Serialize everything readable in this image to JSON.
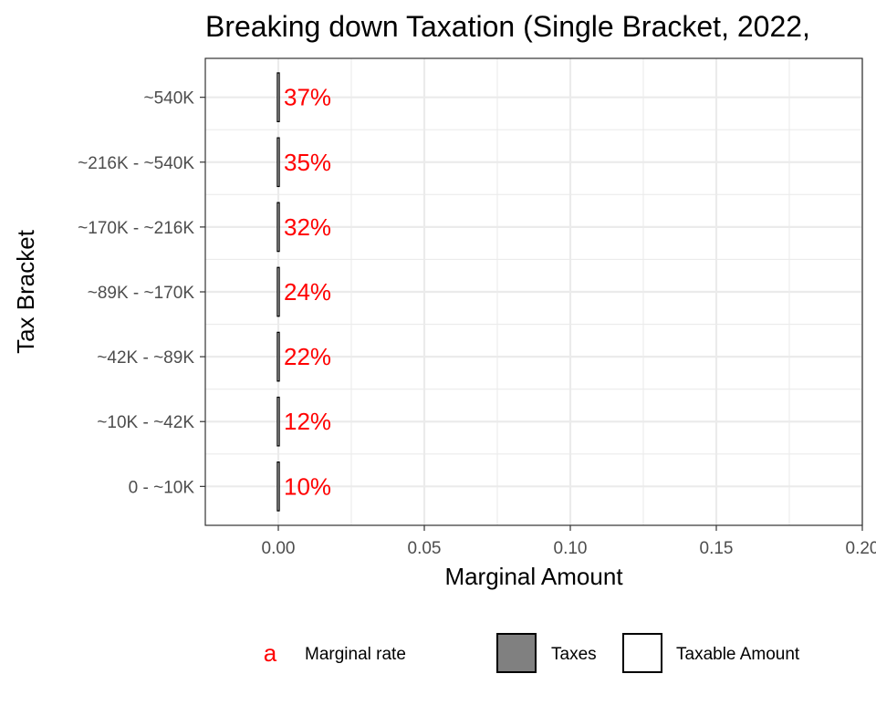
{
  "chart_data": {
    "type": "bar",
    "title": "Breaking down Taxation (Single Bracket, 2022,",
    "xlabel": "Marginal Amount",
    "ylabel": "Tax Bracket",
    "orientation": "horizontal",
    "xlim": [
      -0.025,
      0.2
    ],
    "x_ticks": [
      0.0,
      0.05,
      0.1,
      0.15,
      0.2
    ],
    "x_tick_labels": [
      "0.00",
      "0.05",
      "0.10",
      "0.15",
      "0.20"
    ],
    "categories": [
      "0 - ~10K",
      "~10K - ~42K",
      "~42K - ~89K",
      "~89K - ~170K",
      "~170K - ~216K",
      "~216K - ~540K",
      "~540K"
    ],
    "series": [
      {
        "name": "Taxes",
        "values": [
          0,
          0,
          0,
          0,
          0,
          0,
          0
        ]
      },
      {
        "name": "Taxable Amount",
        "values": [
          0,
          0,
          0,
          0,
          0,
          0,
          0
        ]
      }
    ],
    "annotations": [
      {
        "category": "0 - ~10K",
        "label": "10%"
      },
      {
        "category": "~10K - ~42K",
        "label": "12%"
      },
      {
        "category": "~42K - ~89K",
        "label": "22%"
      },
      {
        "category": "~89K - ~170K",
        "label": "24%"
      },
      {
        "category": "~170K - ~216K",
        "label": "32%"
      },
      {
        "category": "~216K - ~540K",
        "label": "35%"
      },
      {
        "category": "~540K",
        "label": "37%"
      }
    ],
    "legend": {
      "position": "bottom",
      "items": [
        {
          "key": "a",
          "label": "Marginal rate",
          "kind": "text",
          "color": "#ff0000"
        },
        {
          "key": "",
          "label": "Taxes",
          "kind": "fill",
          "color": "#808080"
        },
        {
          "key": "",
          "label": "Taxable Amount",
          "kind": "fill",
          "color": "#ffffff"
        }
      ]
    },
    "grid": true,
    "colors": {
      "annotation": "#ff0000",
      "bar_edge": "#000000",
      "grid": "#ebebeb",
      "panel_border": "#333333"
    }
  }
}
